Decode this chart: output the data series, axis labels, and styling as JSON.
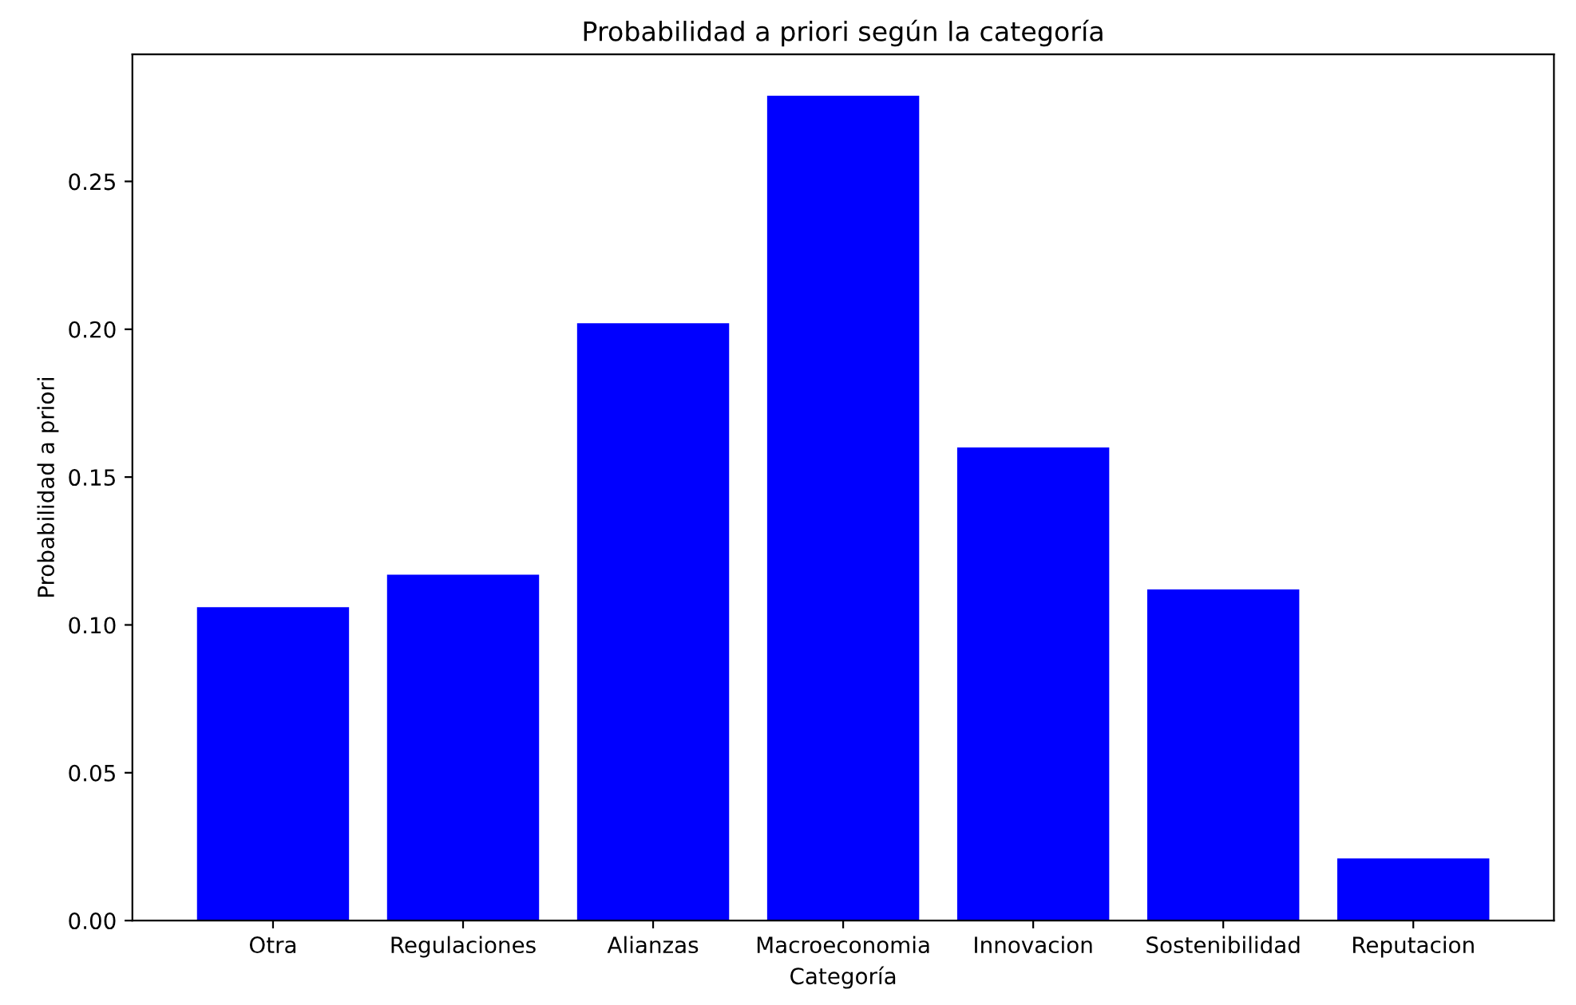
{
  "chart_data": {
    "type": "bar",
    "title": "Probabilidad a priori según la categoría",
    "xlabel": "Categoría",
    "ylabel": "Probabilidad a priori",
    "categories": [
      "Otra",
      "Regulaciones",
      "Alianzas",
      "Macroeconomia",
      "Innovacion",
      "Sostenibilidad",
      "Reputacion"
    ],
    "values": [
      0.106,
      0.117,
      0.202,
      0.279,
      0.16,
      0.112,
      0.021
    ],
    "color": "#0000ff",
    "ylim": [
      0,
      0.293
    ],
    "yticks": [
      {
        "value": 0,
        "label": "0.00"
      },
      {
        "value": 0.05,
        "label": "0.05"
      },
      {
        "value": 0.1,
        "label": "0.10"
      },
      {
        "value": 0.15,
        "label": "0.15"
      },
      {
        "value": 0.2,
        "label": "0.20"
      },
      {
        "value": 0.25,
        "label": "0.25"
      }
    ],
    "grid": false
  }
}
